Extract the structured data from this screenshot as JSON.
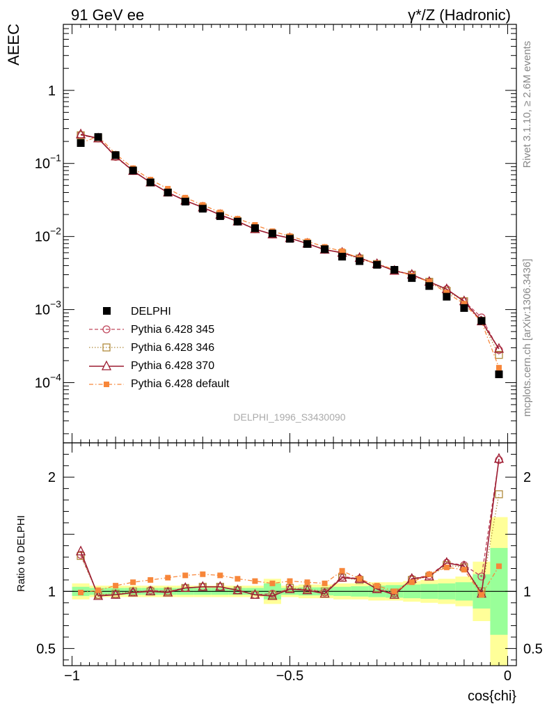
{
  "header": {
    "left": "91 GeV ee",
    "right": "γ*/Z (Hadronic)"
  },
  "side_labels": {
    "rivet": "Rivet 3.1.10, ≥ 2.6M events",
    "mcplots": "mcplots.cern.ch [arXiv:1306.3436]"
  },
  "analysis_id": "DELPHI_1996_S3430090",
  "colors": {
    "data": "#000000",
    "p345": "#c0475c",
    "p346": "#b08a3c",
    "p370": "#9b1b30",
    "pdef": "#f7863a",
    "band_yellow": "#ffff99",
    "band_green": "#99ff99"
  },
  "chart_data": [
    {
      "type": "line",
      "panel": "main",
      "title": "",
      "ylabel": "AEEC",
      "yscale": "log",
      "ylim": [
        1.5e-05,
        8
      ],
      "xlim": [
        -1.02,
        0.02
      ],
      "y_tick_labels": [
        {
          "value": 1,
          "base": "1",
          "exp": ""
        },
        {
          "value": 0.1,
          "base": "10",
          "exp": "−1"
        },
        {
          "value": 0.01,
          "base": "10",
          "exp": "−2"
        },
        {
          "value": 0.001,
          "base": "10",
          "exp": "−3"
        },
        {
          "value": 0.0001,
          "base": "10",
          "exp": "−4"
        }
      ],
      "x": [
        -0.98,
        -0.94,
        -0.9,
        -0.86,
        -0.82,
        -0.78,
        -0.74,
        -0.7,
        -0.66,
        -0.62,
        -0.58,
        -0.54,
        -0.5,
        -0.46,
        -0.42,
        -0.38,
        -0.34,
        -0.3,
        -0.26,
        -0.22,
        -0.18,
        -0.14,
        -0.1,
        -0.06,
        -0.02
      ],
      "series": [
        {
          "name": "DELPHI",
          "key": "data",
          "values": [
            0.19,
            0.23,
            0.13,
            0.08,
            0.055,
            0.04,
            0.03,
            0.024,
            0.019,
            0.016,
            0.013,
            0.011,
            0.0093,
            0.0079,
            0.0067,
            0.0053,
            0.0046,
            0.0041,
            0.0035,
            0.0027,
            0.0021,
            0.0015,
            0.00105,
            0.0007,
            0.00013
          ]
        },
        {
          "name": "Pythia 6.428 345",
          "key": "p345",
          "values": [
            0.245,
            0.22,
            0.123,
            0.079,
            0.055,
            0.04,
            0.031,
            0.025,
            0.0197,
            0.016,
            0.0126,
            0.0107,
            0.0095,
            0.008,
            0.0066,
            0.006,
            0.0051,
            0.0042,
            0.0034,
            0.003,
            0.0024,
            0.0019,
            0.0013,
            0.00078,
            0.00028
          ]
        },
        {
          "name": "Pythia 6.428 346",
          "key": "p346",
          "values": [
            0.243,
            0.222,
            0.125,
            0.08,
            0.055,
            0.04,
            0.031,
            0.025,
            0.0198,
            0.0162,
            0.0127,
            0.0107,
            0.0096,
            0.008,
            0.0067,
            0.0059,
            0.005,
            0.0042,
            0.0034,
            0.003,
            0.0024,
            0.0018,
            0.0013,
            0.0007,
            0.00024
          ]
        },
        {
          "name": "Pythia 6.428 370",
          "key": "p370",
          "values": [
            0.25,
            0.22,
            0.125,
            0.079,
            0.055,
            0.04,
            0.031,
            0.025,
            0.0198,
            0.0161,
            0.0126,
            0.0107,
            0.0095,
            0.008,
            0.0066,
            0.006,
            0.0051,
            0.0042,
            0.0034,
            0.003,
            0.0024,
            0.0019,
            0.0013,
            0.00069,
            0.00029
          ]
        },
        {
          "name": "Pythia 6.428 default",
          "key": "pdef",
          "values": [
            0.19,
            0.235,
            0.135,
            0.086,
            0.06,
            0.045,
            0.034,
            0.027,
            0.0214,
            0.0175,
            0.0144,
            0.0118,
            0.0101,
            0.0086,
            0.0072,
            0.0063,
            0.005,
            0.0043,
            0.0035,
            0.0029,
            0.0024,
            0.0017,
            0.0012,
            0.00068,
            0.00016
          ]
        }
      ],
      "legend_position": "lower-left"
    },
    {
      "type": "line",
      "panel": "ratio",
      "ylabel": "Ratio to DELPHI",
      "xlabel": "cos{chi}",
      "ylim": [
        0.35,
        2.3
      ],
      "xlim": [
        -1.02,
        0.02
      ],
      "x_tick_labels": [
        {
          "value": -1,
          "label": "−1"
        },
        {
          "value": -0.5,
          "label": "−0.5"
        },
        {
          "value": 0,
          "label": "0"
        }
      ],
      "y_tick_labels": [
        {
          "value": 0.5,
          "label": "0.5"
        },
        {
          "value": 1,
          "label": "1"
        },
        {
          "value": 2,
          "label": "2"
        }
      ],
      "band_yellow_half": [
        0.07,
        0.05,
        0.05,
        0.05,
        0.05,
        0.05,
        0.05,
        0.05,
        0.05,
        0.05,
        0.05,
        0.11,
        0.05,
        0.06,
        0.06,
        0.07,
        0.07,
        0.08,
        0.08,
        0.09,
        0.1,
        0.11,
        0.13,
        0.26,
        0.65
      ],
      "band_green_half": [
        0.04,
        0.03,
        0.03,
        0.03,
        0.03,
        0.03,
        0.03,
        0.03,
        0.03,
        0.03,
        0.03,
        0.07,
        0.03,
        0.035,
        0.035,
        0.04,
        0.045,
        0.05,
        0.055,
        0.06,
        0.065,
        0.07,
        0.08,
        0.15,
        0.38
      ],
      "series": [
        {
          "name": "Pythia 6.428 345",
          "key": "p345",
          "values": [
            1.32,
            0.97,
            0.97,
            0.99,
            1.01,
            1.0,
            1.03,
            1.04,
            1.04,
            1.01,
            0.97,
            0.98,
            1.02,
            1.02,
            0.99,
            1.13,
            1.11,
            1.02,
            0.98,
            1.11,
            1.14,
            1.25,
            1.23,
            1.13,
            2.15
          ]
        },
        {
          "name": "Pythia 6.428 346",
          "key": "p346",
          "values": [
            1.31,
            0.97,
            0.98,
            1.0,
            1.0,
            1.0,
            1.03,
            1.04,
            1.04,
            1.01,
            0.97,
            0.97,
            1.03,
            1.02,
            1.0,
            1.12,
            1.1,
            1.03,
            0.99,
            1.1,
            1.13,
            1.23,
            1.21,
            1.0,
            1.85
          ]
        },
        {
          "name": "Pythia 6.428 370",
          "key": "p370",
          "values": [
            1.35,
            0.96,
            0.97,
            0.99,
            1.0,
            0.99,
            1.03,
            1.04,
            1.04,
            1.01,
            0.97,
            0.96,
            1.02,
            1.01,
            0.98,
            1.12,
            1.11,
            1.02,
            0.97,
            1.11,
            1.13,
            1.25,
            1.22,
            0.98,
            2.16
          ]
        },
        {
          "name": "Pythia 6.428 default",
          "key": "pdef",
          "values": [
            0.99,
            1.01,
            1.05,
            1.08,
            1.1,
            1.12,
            1.14,
            1.15,
            1.14,
            1.11,
            1.09,
            1.07,
            1.09,
            1.08,
            1.07,
            1.18,
            1.11,
            1.05,
            1.0,
            1.08,
            1.15,
            1.21,
            1.19,
            0.97,
            1.22
          ]
        }
      ]
    }
  ]
}
